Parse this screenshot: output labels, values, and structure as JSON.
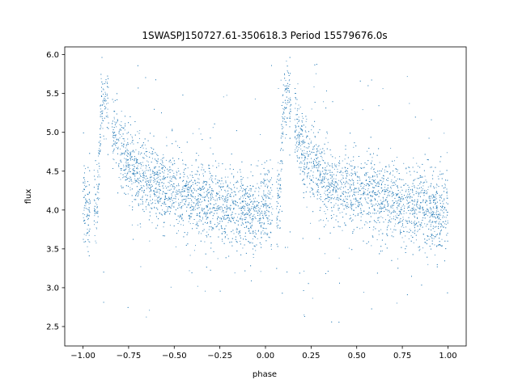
{
  "chart_data": {
    "type": "scatter",
    "title": "1SWASPJ150727.61-350618.3 Period 15579676.0s",
    "xlabel": "phase",
    "ylabel": "flux",
    "xlim": [
      -1.1,
      1.1
    ],
    "ylim": [
      2.25,
      6.1
    ],
    "xticks": [
      -1.0,
      -0.75,
      -0.5,
      -0.25,
      0.0,
      0.25,
      0.5,
      0.75,
      1.0
    ],
    "xtick_labels": [
      "−1.00",
      "−0.75",
      "−0.50",
      "−0.25",
      "0.00",
      "0.25",
      "0.50",
      "0.75",
      "1.00"
    ],
    "yticks": [
      2.5,
      3.0,
      3.5,
      4.0,
      4.5,
      5.0,
      5.5,
      6.0
    ],
    "ytick_labels": [
      "2.5",
      "3.0",
      "3.5",
      "4.0",
      "4.5",
      "5.0",
      "5.5",
      "6.0"
    ],
    "grid": false,
    "legend": "none",
    "marker_color": "#1f77b4",
    "series": [
      {
        "phase_flux_profile": {
          "x": [
            -1.0,
            -0.95,
            -0.92,
            -0.9,
            -0.88,
            -0.85,
            -0.8,
            -0.75,
            -0.7,
            -0.6,
            -0.5,
            -0.4,
            -0.3,
            -0.2,
            -0.1,
            -0.05,
            0.0,
            0.05,
            0.08,
            0.1,
            0.12,
            0.15,
            0.2,
            0.25,
            0.3,
            0.4,
            0.5,
            0.6,
            0.7,
            0.8,
            0.9,
            0.95,
            1.0
          ],
          "y": [
            4.05,
            4.0,
            4.05,
            5.4,
            5.5,
            5.15,
            4.8,
            4.6,
            4.45,
            4.3,
            4.2,
            4.15,
            4.1,
            4.05,
            4.0,
            3.95,
            4.05,
            4.0,
            4.05,
            5.4,
            5.5,
            5.15,
            4.8,
            4.6,
            4.45,
            4.3,
            4.2,
            4.15,
            4.1,
            4.05,
            4.0,
            3.95,
            4.05
          ]
        },
        "scatter_std": 0.25,
        "outlier_y_range": [
          2.5,
          5.9
        ]
      }
    ]
  }
}
